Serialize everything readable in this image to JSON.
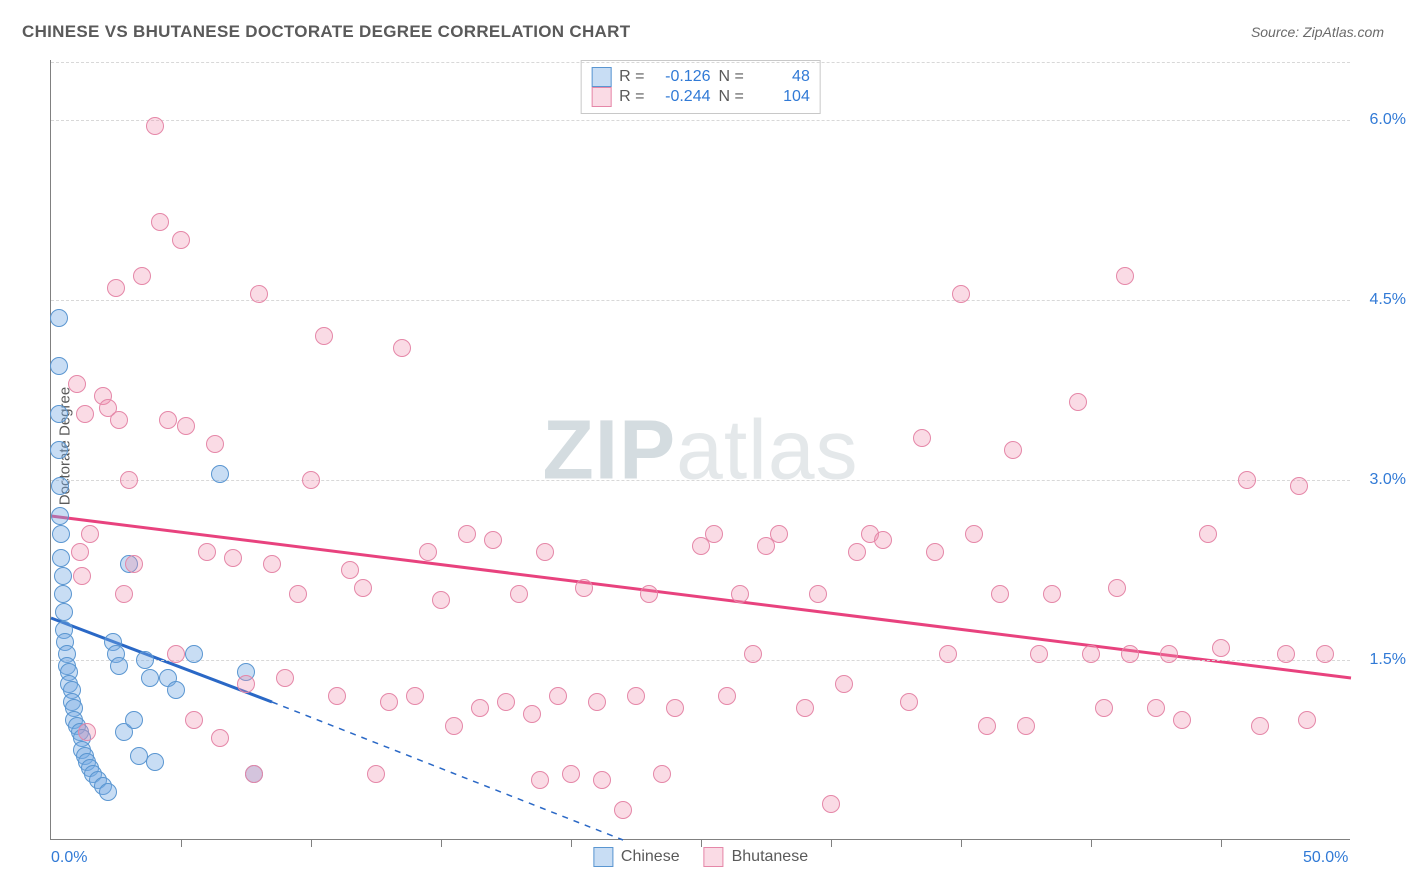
{
  "title": "CHINESE VS BHUTANESE DOCTORATE DEGREE CORRELATION CHART",
  "source_prefix": "Source: ",
  "source_name": "ZipAtlas.com",
  "ylabel": "Doctorate Degree",
  "watermark_bold": "ZIP",
  "watermark_rest": "atlas",
  "chart": {
    "type": "scatter",
    "xlim": [
      0,
      50
    ],
    "ylim": [
      0,
      6.5
    ],
    "x_tick_labels": {
      "0": "0.0%",
      "50": "50.0%"
    },
    "y_ticks": [
      1.5,
      3.0,
      4.5,
      6.0
    ],
    "y_tick_labels": [
      "1.5%",
      "3.0%",
      "4.5%",
      "6.0%"
    ],
    "x_minor_ticks": [
      5,
      10,
      15,
      20,
      25,
      30,
      35,
      40,
      45
    ],
    "background_color": "#ffffff",
    "grid_color": "#d8d8d8",
    "axis_color": "#808080",
    "point_radius": 9,
    "point_border": 1.5,
    "series": [
      {
        "name": "Chinese",
        "fill": "rgba(118,170,227,0.40)",
        "stroke": "#5a96d1",
        "reg_color": "#2a68c6",
        "reg_width": 3,
        "R": "-0.126",
        "N": "48",
        "reg_solid": {
          "x1": 0,
          "y1": 1.85,
          "x2": 8.5,
          "y2": 1.15
        },
        "reg_dash": {
          "x1": 8.5,
          "y1": 1.15,
          "x2": 22,
          "y2": 0
        },
        "points": [
          [
            0.3,
            4.35
          ],
          [
            0.3,
            3.95
          ],
          [
            0.3,
            3.55
          ],
          [
            0.3,
            3.25
          ],
          [
            0.35,
            2.95
          ],
          [
            0.35,
            2.7
          ],
          [
            0.4,
            2.55
          ],
          [
            0.4,
            2.35
          ],
          [
            0.45,
            2.2
          ],
          [
            0.45,
            2.05
          ],
          [
            0.5,
            1.9
          ],
          [
            0.5,
            1.75
          ],
          [
            0.55,
            1.65
          ],
          [
            0.6,
            1.55
          ],
          [
            0.6,
            1.45
          ],
          [
            0.7,
            1.4
          ],
          [
            0.7,
            1.3
          ],
          [
            0.8,
            1.25
          ],
          [
            0.8,
            1.15
          ],
          [
            0.9,
            1.1
          ],
          [
            0.9,
            1.0
          ],
          [
            1.0,
            0.95
          ],
          [
            1.1,
            0.9
          ],
          [
            1.2,
            0.85
          ],
          [
            1.2,
            0.75
          ],
          [
            1.3,
            0.7
          ],
          [
            1.4,
            0.65
          ],
          [
            1.5,
            0.6
          ],
          [
            1.6,
            0.55
          ],
          [
            1.8,
            0.5
          ],
          [
            2.0,
            0.45
          ],
          [
            2.2,
            0.4
          ],
          [
            2.4,
            1.65
          ],
          [
            2.5,
            1.55
          ],
          [
            2.6,
            1.45
          ],
          [
            2.8,
            0.9
          ],
          [
            3.0,
            2.3
          ],
          [
            3.2,
            1.0
          ],
          [
            3.4,
            0.7
          ],
          [
            3.6,
            1.5
          ],
          [
            3.8,
            1.35
          ],
          [
            4.0,
            0.65
          ],
          [
            4.5,
            1.35
          ],
          [
            4.8,
            1.25
          ],
          [
            5.5,
            1.55
          ],
          [
            6.5,
            3.05
          ],
          [
            7.5,
            1.4
          ],
          [
            7.8,
            0.55
          ]
        ]
      },
      {
        "name": "Bhutanese",
        "fill": "rgba(238,144,173,0.32)",
        "stroke": "#e587a8",
        "reg_color": "#e8427e",
        "reg_width": 3,
        "R": "-0.244",
        "N": "104",
        "reg_solid": {
          "x1": 0,
          "y1": 2.7,
          "x2": 50,
          "y2": 1.35
        },
        "reg_dash": null,
        "points": [
          [
            1.0,
            3.8
          ],
          [
            1.1,
            2.4
          ],
          [
            1.2,
            2.2
          ],
          [
            1.3,
            3.55
          ],
          [
            1.4,
            0.9
          ],
          [
            1.5,
            2.55
          ],
          [
            2.0,
            3.7
          ],
          [
            2.2,
            3.6
          ],
          [
            2.5,
            4.6
          ],
          [
            2.6,
            3.5
          ],
          [
            2.8,
            2.05
          ],
          [
            3.0,
            3.0
          ],
          [
            3.2,
            2.3
          ],
          [
            3.5,
            4.7
          ],
          [
            4.0,
            5.95
          ],
          [
            4.2,
            5.15
          ],
          [
            4.5,
            3.5
          ],
          [
            4.8,
            1.55
          ],
          [
            5.0,
            5.0
          ],
          [
            5.2,
            3.45
          ],
          [
            5.5,
            1.0
          ],
          [
            6.0,
            2.4
          ],
          [
            6.3,
            3.3
          ],
          [
            6.5,
            0.85
          ],
          [
            7.0,
            2.35
          ],
          [
            7.5,
            1.3
          ],
          [
            7.8,
            0.55
          ],
          [
            8.0,
            4.55
          ],
          [
            8.5,
            2.3
          ],
          [
            9.0,
            1.35
          ],
          [
            9.5,
            2.05
          ],
          [
            10.0,
            3.0
          ],
          [
            10.5,
            4.2
          ],
          [
            11.0,
            1.2
          ],
          [
            11.5,
            2.25
          ],
          [
            12.0,
            2.1
          ],
          [
            12.5,
            0.55
          ],
          [
            13.0,
            1.15
          ],
          [
            13.5,
            4.1
          ],
          [
            14.0,
            1.2
          ],
          [
            14.5,
            2.4
          ],
          [
            15.0,
            2.0
          ],
          [
            15.5,
            0.95
          ],
          [
            16.0,
            2.55
          ],
          [
            16.5,
            1.1
          ],
          [
            17.0,
            2.5
          ],
          [
            17.5,
            1.15
          ],
          [
            18.0,
            2.05
          ],
          [
            18.5,
            1.05
          ],
          [
            18.8,
            0.5
          ],
          [
            19.0,
            2.4
          ],
          [
            19.5,
            1.2
          ],
          [
            20.0,
            0.55
          ],
          [
            20.5,
            2.1
          ],
          [
            21.0,
            1.15
          ],
          [
            21.2,
            0.5
          ],
          [
            22.0,
            0.25
          ],
          [
            22.5,
            1.2
          ],
          [
            23.0,
            2.05
          ],
          [
            23.5,
            0.55
          ],
          [
            24.0,
            1.1
          ],
          [
            25.0,
            2.45
          ],
          [
            25.5,
            2.55
          ],
          [
            26.0,
            1.2
          ],
          [
            26.5,
            2.05
          ],
          [
            27.0,
            1.55
          ],
          [
            27.5,
            2.45
          ],
          [
            28.0,
            2.55
          ],
          [
            29.0,
            1.1
          ],
          [
            29.5,
            2.05
          ],
          [
            30.0,
            0.3
          ],
          [
            30.5,
            1.3
          ],
          [
            31.0,
            2.4
          ],
          [
            31.5,
            2.55
          ],
          [
            32.0,
            2.5
          ],
          [
            33.0,
            1.15
          ],
          [
            33.5,
            3.35
          ],
          [
            34.0,
            2.4
          ],
          [
            34.5,
            1.55
          ],
          [
            35.0,
            4.55
          ],
          [
            35.5,
            2.55
          ],
          [
            36.0,
            0.95
          ],
          [
            36.5,
            2.05
          ],
          [
            37.0,
            3.25
          ],
          [
            37.5,
            0.95
          ],
          [
            38.0,
            1.55
          ],
          [
            38.5,
            2.05
          ],
          [
            39.5,
            3.65
          ],
          [
            40.0,
            1.55
          ],
          [
            40.5,
            1.1
          ],
          [
            41.0,
            2.1
          ],
          [
            41.3,
            4.7
          ],
          [
            41.5,
            1.55
          ],
          [
            42.5,
            1.1
          ],
          [
            43.0,
            1.55
          ],
          [
            43.5,
            1.0
          ],
          [
            44.5,
            2.55
          ],
          [
            45.0,
            1.6
          ],
          [
            46.0,
            3.0
          ],
          [
            46.5,
            0.95
          ],
          [
            47.5,
            1.55
          ],
          [
            48.0,
            2.95
          ],
          [
            48.3,
            1.0
          ],
          [
            49.0,
            1.55
          ]
        ]
      }
    ],
    "bottom_legend": [
      "Chinese",
      "Bhutanese"
    ]
  }
}
